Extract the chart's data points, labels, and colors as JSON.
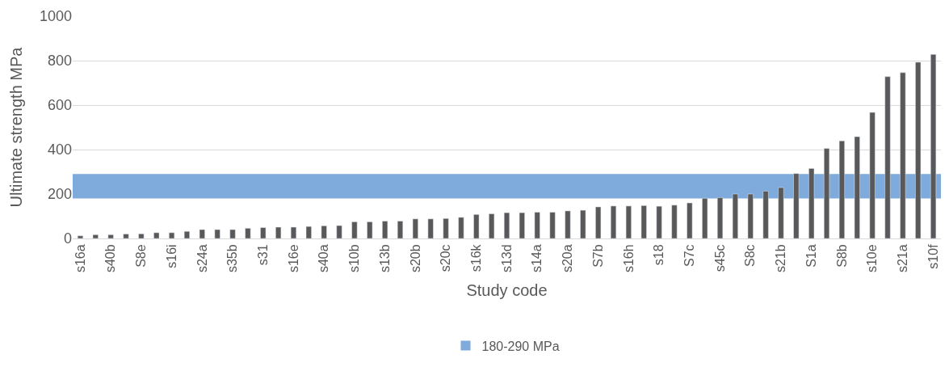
{
  "chart_data": {
    "type": "bar",
    "xlabel": "Study code",
    "ylabel": "Ultimate strength MPa",
    "categories": [
      "s16a",
      null,
      "s40b",
      null,
      "S8e",
      null,
      "s16i",
      null,
      "s24a",
      null,
      "s35b",
      null,
      "s31",
      null,
      "s16e",
      null,
      "s40a",
      null,
      "s10b",
      null,
      "s13b",
      null,
      "s20b",
      null,
      "s20c",
      null,
      "s16k",
      null,
      "s13d",
      null,
      "s14a",
      null,
      "s20a",
      null,
      "S7b",
      null,
      "s16h",
      null,
      "s18",
      null,
      "S7c",
      null,
      "s45c",
      null,
      "S8c",
      null,
      "s21b",
      null,
      "S1a",
      null,
      "S8b",
      null,
      "s10e",
      null,
      "s21a",
      null,
      "s10f"
    ],
    "values": [
      12,
      17,
      17,
      20,
      21,
      26,
      26,
      32,
      40,
      40,
      40,
      46,
      49,
      51,
      51,
      54,
      57,
      58,
      75,
      75,
      78,
      78,
      88,
      88,
      90,
      95,
      108,
      111,
      116,
      116,
      118,
      118,
      124,
      127,
      142,
      146,
      146,
      148,
      145,
      150,
      160,
      181,
      184,
      200,
      200,
      213,
      229,
      292,
      315,
      405,
      439,
      458,
      567,
      728,
      746,
      793,
      828
    ],
    "color": "#595959",
    "ylim": [
      0,
      1000
    ],
    "yticks": [
      0,
      200,
      400,
      600,
      800,
      1000
    ],
    "grid": "y",
    "legend": "bottom",
    "bands": [
      {
        "axis": "y",
        "from": 180,
        "to": 290,
        "label": "180-290 MPa",
        "color": "#7eaadc"
      }
    ]
  }
}
